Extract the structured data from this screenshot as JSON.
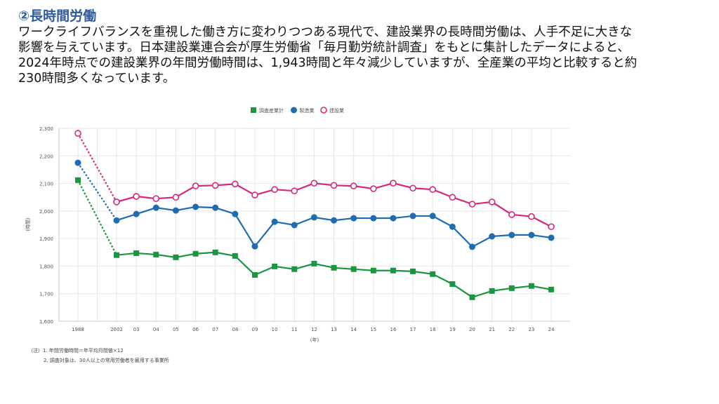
{
  "heading": "②長時間労働",
  "paragraph_lines": [
    "ワークライフバランスを重視した働き方に変わりつつある現代で、建設業界の長時間労働は、人手不足に大きな",
    "影響を与えています。日本建設業連合会が厚生労働省「毎月勤労統計調査」をもとに集計したデータによると、",
    "2024年時点での建設業界の年間労働時間は、1,943時間と年々減少していますが、全産業の平均と比較すると約",
    "230時間多くなっています。"
  ],
  "notes": [
    "（注）1. 年間労働時間＝年平均月間値×12",
    "2. 調査対象は、30人以上の常用労働者を雇用する事業所"
  ],
  "chart_data": {
    "type": "line",
    "title": "",
    "xlabel": "(年)",
    "ylabel": "(時間)",
    "ylim": [
      1600,
      2300
    ],
    "yticks": [
      1600,
      1700,
      1800,
      1900,
      2000,
      2100,
      2200,
      2300
    ],
    "ytick_labels": [
      "1,600",
      "1,700",
      "1,800",
      "1,900",
      "2,000",
      "2,100",
      "2,200",
      "2,300"
    ],
    "x": [
      1988,
      2002,
      2003,
      2004,
      2005,
      2006,
      2007,
      2008,
      2009,
      2010,
      2011,
      2012,
      2013,
      2014,
      2015,
      2016,
      2017,
      2018,
      2019,
      2020,
      2021,
      2022,
      2023,
      2024
    ],
    "xtick_labels": [
      "1988",
      "2002",
      "03",
      "04",
      "05",
      "06",
      "07",
      "08",
      "09",
      "10",
      "11",
      "12",
      "13",
      "14",
      "15",
      "16",
      "17",
      "18",
      "19",
      "20",
      "21",
      "22",
      "23",
      "24"
    ],
    "grid": true,
    "legend_position": "top-center",
    "series": [
      {
        "name": "調査産業計",
        "color": "#1a9641",
        "marker": "square",
        "values": [
          2112,
          1840,
          1847,
          1842,
          1832,
          1845,
          1850,
          1837,
          1768,
          1799,
          1789,
          1809,
          1794,
          1789,
          1784,
          1784,
          1781,
          1771,
          1735,
          1687,
          1710,
          1720,
          1728,
          1715
        ]
      },
      {
        "name": "製造業",
        "color": "#1f6cb0",
        "marker": "circle",
        "values": [
          2175,
          1966,
          1989,
          2012,
          2002,
          2015,
          2012,
          1989,
          1872,
          1961,
          1949,
          1977,
          1966,
          1974,
          1974,
          1974,
          1982,
          1982,
          1943,
          1870,
          1908,
          1913,
          1913,
          1903
        ]
      },
      {
        "name": "建設業",
        "color": "#d6287a",
        "marker": "open-circle",
        "values": [
          2282,
          2033,
          2053,
          2045,
          2050,
          2091,
          2093,
          2098,
          2058,
          2078,
          2073,
          2101,
          2093,
          2091,
          2081,
          2101,
          2083,
          2078,
          2050,
          2025,
          2033,
          1987,
          1980,
          1943
        ]
      }
    ]
  }
}
